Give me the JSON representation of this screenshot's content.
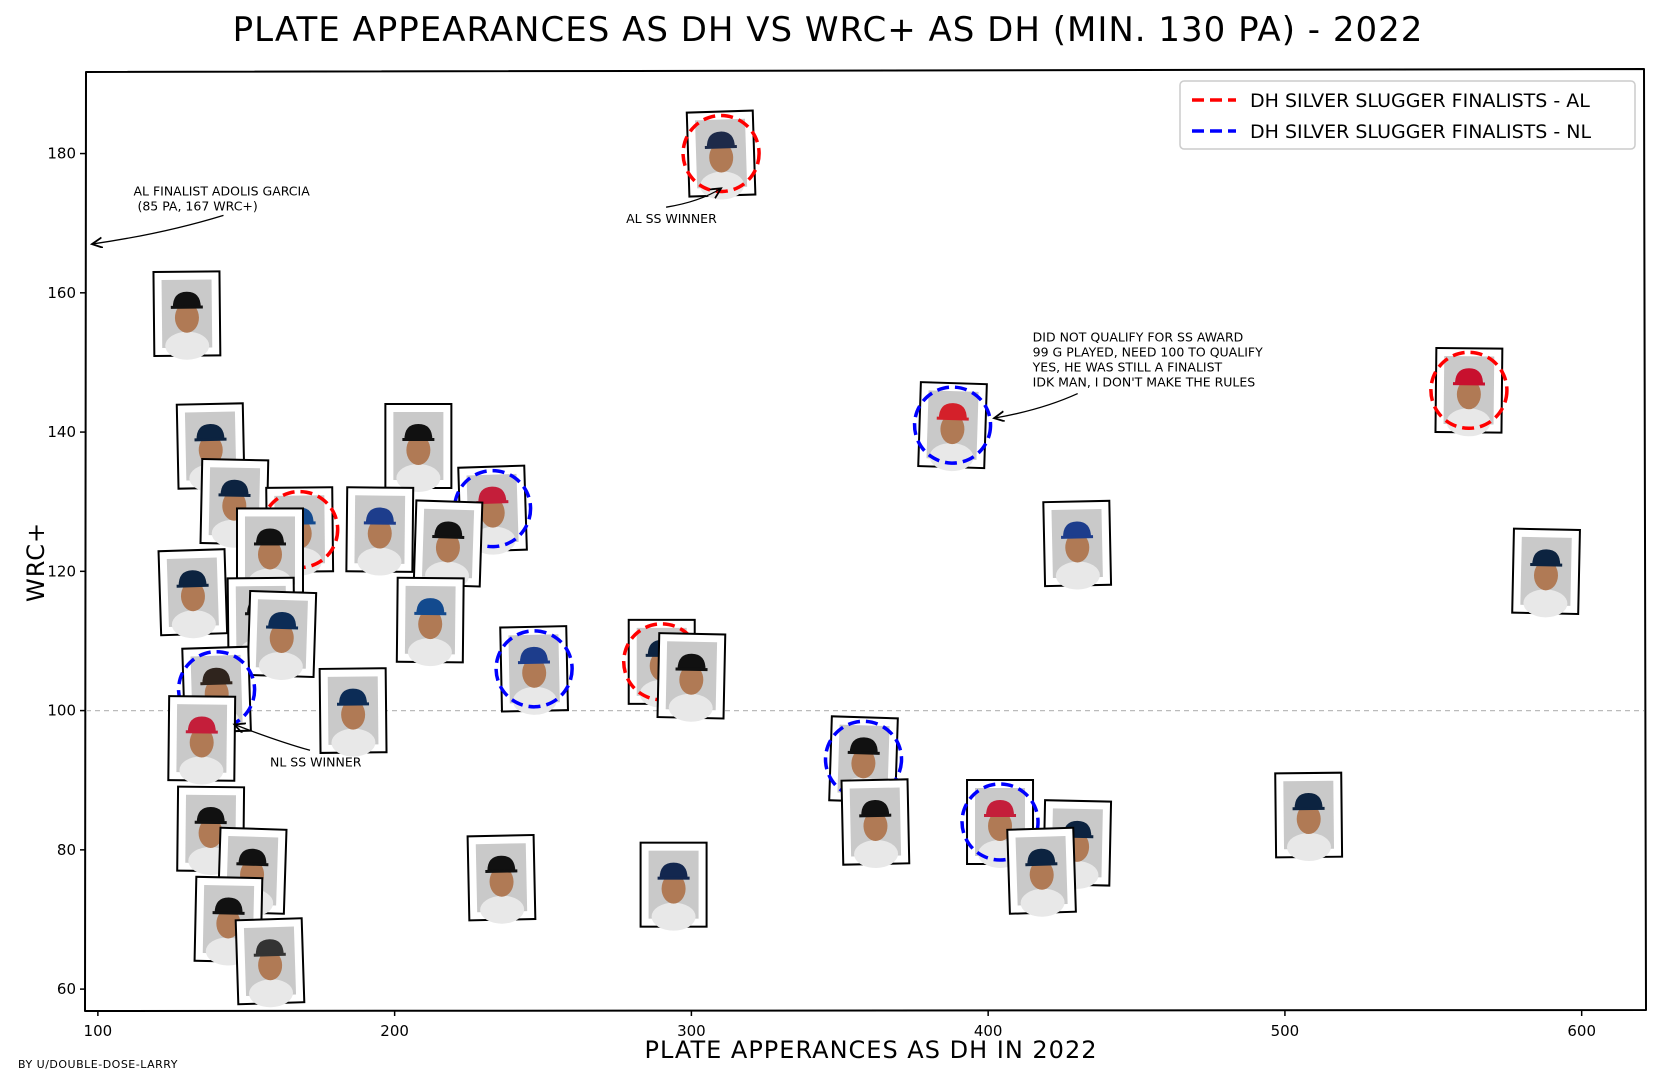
{
  "title": "Plate appearances as DH vs wRC+ as DH (min. 130 PA) - 2022",
  "credit": "by u/double-dose-larry",
  "chart_data": {
    "type": "scatter",
    "title": "Plate appearances as DH vs wRC+ as DH (min. 130 PA) - 2022",
    "xlabel": "Plate apperances as DH in 2022",
    "ylabel": "wRC+",
    "xlim": [
      96,
      621
    ],
    "ylim": [
      57,
      192
    ],
    "xticks": [
      100,
      200,
      300,
      400,
      500,
      600
    ],
    "yticks": [
      60,
      80,
      100,
      120,
      140,
      160,
      180
    ],
    "reference_line_y": 100,
    "grid": false,
    "legend_position": "top-right",
    "legend": [
      {
        "label": "DH Silver Slugger Finalists - AL",
        "color": "#ff0000"
      },
      {
        "label": "DH Silver Slugger Finalists - NL",
        "color": "#0000ff"
      }
    ],
    "points": [
      {
        "x": 310,
        "y": 180,
        "cap": "#1d2a49",
        "finalist": "AL"
      },
      {
        "x": 130,
        "y": 157,
        "cap": "#111111",
        "finalist": ""
      },
      {
        "x": 562,
        "y": 146,
        "cap": "#c8102e",
        "finalist": "AL"
      },
      {
        "x": 388,
        "y": 141,
        "cap": "#d4202a",
        "finalist": "NL"
      },
      {
        "x": 138,
        "y": 138,
        "cap": "#0c2340",
        "finalist": ""
      },
      {
        "x": 208,
        "y": 138,
        "cap": "#111111",
        "finalist": ""
      },
      {
        "x": 146,
        "y": 130,
        "cap": "#0c2340",
        "finalist": ""
      },
      {
        "x": 233,
        "y": 129,
        "cap": "#c41e3a",
        "finalist": "NL"
      },
      {
        "x": 168,
        "y": 126,
        "cap": "#134a8e",
        "finalist": "AL"
      },
      {
        "x": 195,
        "y": 126,
        "cap": "#1d3d8c",
        "finalist": ""
      },
      {
        "x": 218,
        "y": 124,
        "cap": "#111111",
        "finalist": ""
      },
      {
        "x": 430,
        "y": 124,
        "cap": "#1d3d8c",
        "finalist": ""
      },
      {
        "x": 158,
        "y": 123,
        "cap": "#111111",
        "finalist": ""
      },
      {
        "x": 588,
        "y": 120,
        "cap": "#0c2340",
        "finalist": ""
      },
      {
        "x": 132,
        "y": 117,
        "cap": "#0c2340",
        "finalist": ""
      },
      {
        "x": 155,
        "y": 113,
        "cap": "#111111",
        "finalist": ""
      },
      {
        "x": 212,
        "y": 113,
        "cap": "#134a8e",
        "finalist": ""
      },
      {
        "x": 162,
        "y": 111,
        "cap": "#0c2c56",
        "finalist": ""
      },
      {
        "x": 247,
        "y": 106,
        "cap": "#1d3d8c",
        "finalist": "NL"
      },
      {
        "x": 290,
        "y": 107,
        "cap": "#0c2340",
        "finalist": "AL"
      },
      {
        "x": 300,
        "y": 105,
        "cap": "#111111",
        "finalist": ""
      },
      {
        "x": 140,
        "y": 103,
        "cap": "#2f241d",
        "finalist": "NL"
      },
      {
        "x": 186,
        "y": 100,
        "cap": "#0c2c56",
        "finalist": ""
      },
      {
        "x": 135,
        "y": 96,
        "cap": "#c41e3a",
        "finalist": ""
      },
      {
        "x": 358,
        "y": 93,
        "cap": "#111111",
        "finalist": "NL"
      },
      {
        "x": 362,
        "y": 84,
        "cap": "#111111",
        "finalist": ""
      },
      {
        "x": 404,
        "y": 84,
        "cap": "#c41e3a",
        "finalist": "NL"
      },
      {
        "x": 430,
        "y": 81,
        "cap": "#0c2340",
        "finalist": ""
      },
      {
        "x": 418,
        "y": 77,
        "cap": "#0c2340",
        "finalist": ""
      },
      {
        "x": 508,
        "y": 85,
        "cap": "#0c2340",
        "finalist": ""
      },
      {
        "x": 138,
        "y": 83,
        "cap": "#111111",
        "finalist": ""
      },
      {
        "x": 152,
        "y": 77,
        "cap": "#111111",
        "finalist": ""
      },
      {
        "x": 236,
        "y": 76,
        "cap": "#111111",
        "finalist": ""
      },
      {
        "x": 294,
        "y": 75,
        "cap": "#13274f",
        "finalist": ""
      },
      {
        "x": 144,
        "y": 70,
        "cap": "#111111",
        "finalist": ""
      },
      {
        "x": 158,
        "y": 64,
        "cap": "#333333",
        "finalist": ""
      }
    ],
    "annotations": [
      {
        "text": [
          "AL finalist Adolis Garcia",
          " (85 PA, 167 wRC+)"
        ],
        "text_x": 112,
        "text_y": 174,
        "arrow_to": [
          98,
          167
        ]
      },
      {
        "text": [
          "AL SS winner"
        ],
        "text_x": 278,
        "text_y": 170,
        "arrow_to": [
          310,
          175
        ]
      },
      {
        "text": [
          "Did not qualify for SS award",
          "99 G played, need 100 to qualify",
          "yes, he was still a finalist",
          "idk man, I don't make the rules"
        ],
        "text_x": 415,
        "text_y": 153,
        "arrow_to": [
          402,
          142
        ]
      },
      {
        "text": [
          "NL SS winner"
        ],
        "text_x": 158,
        "text_y": 92,
        "arrow_to": [
          146,
          98
        ]
      }
    ]
  }
}
